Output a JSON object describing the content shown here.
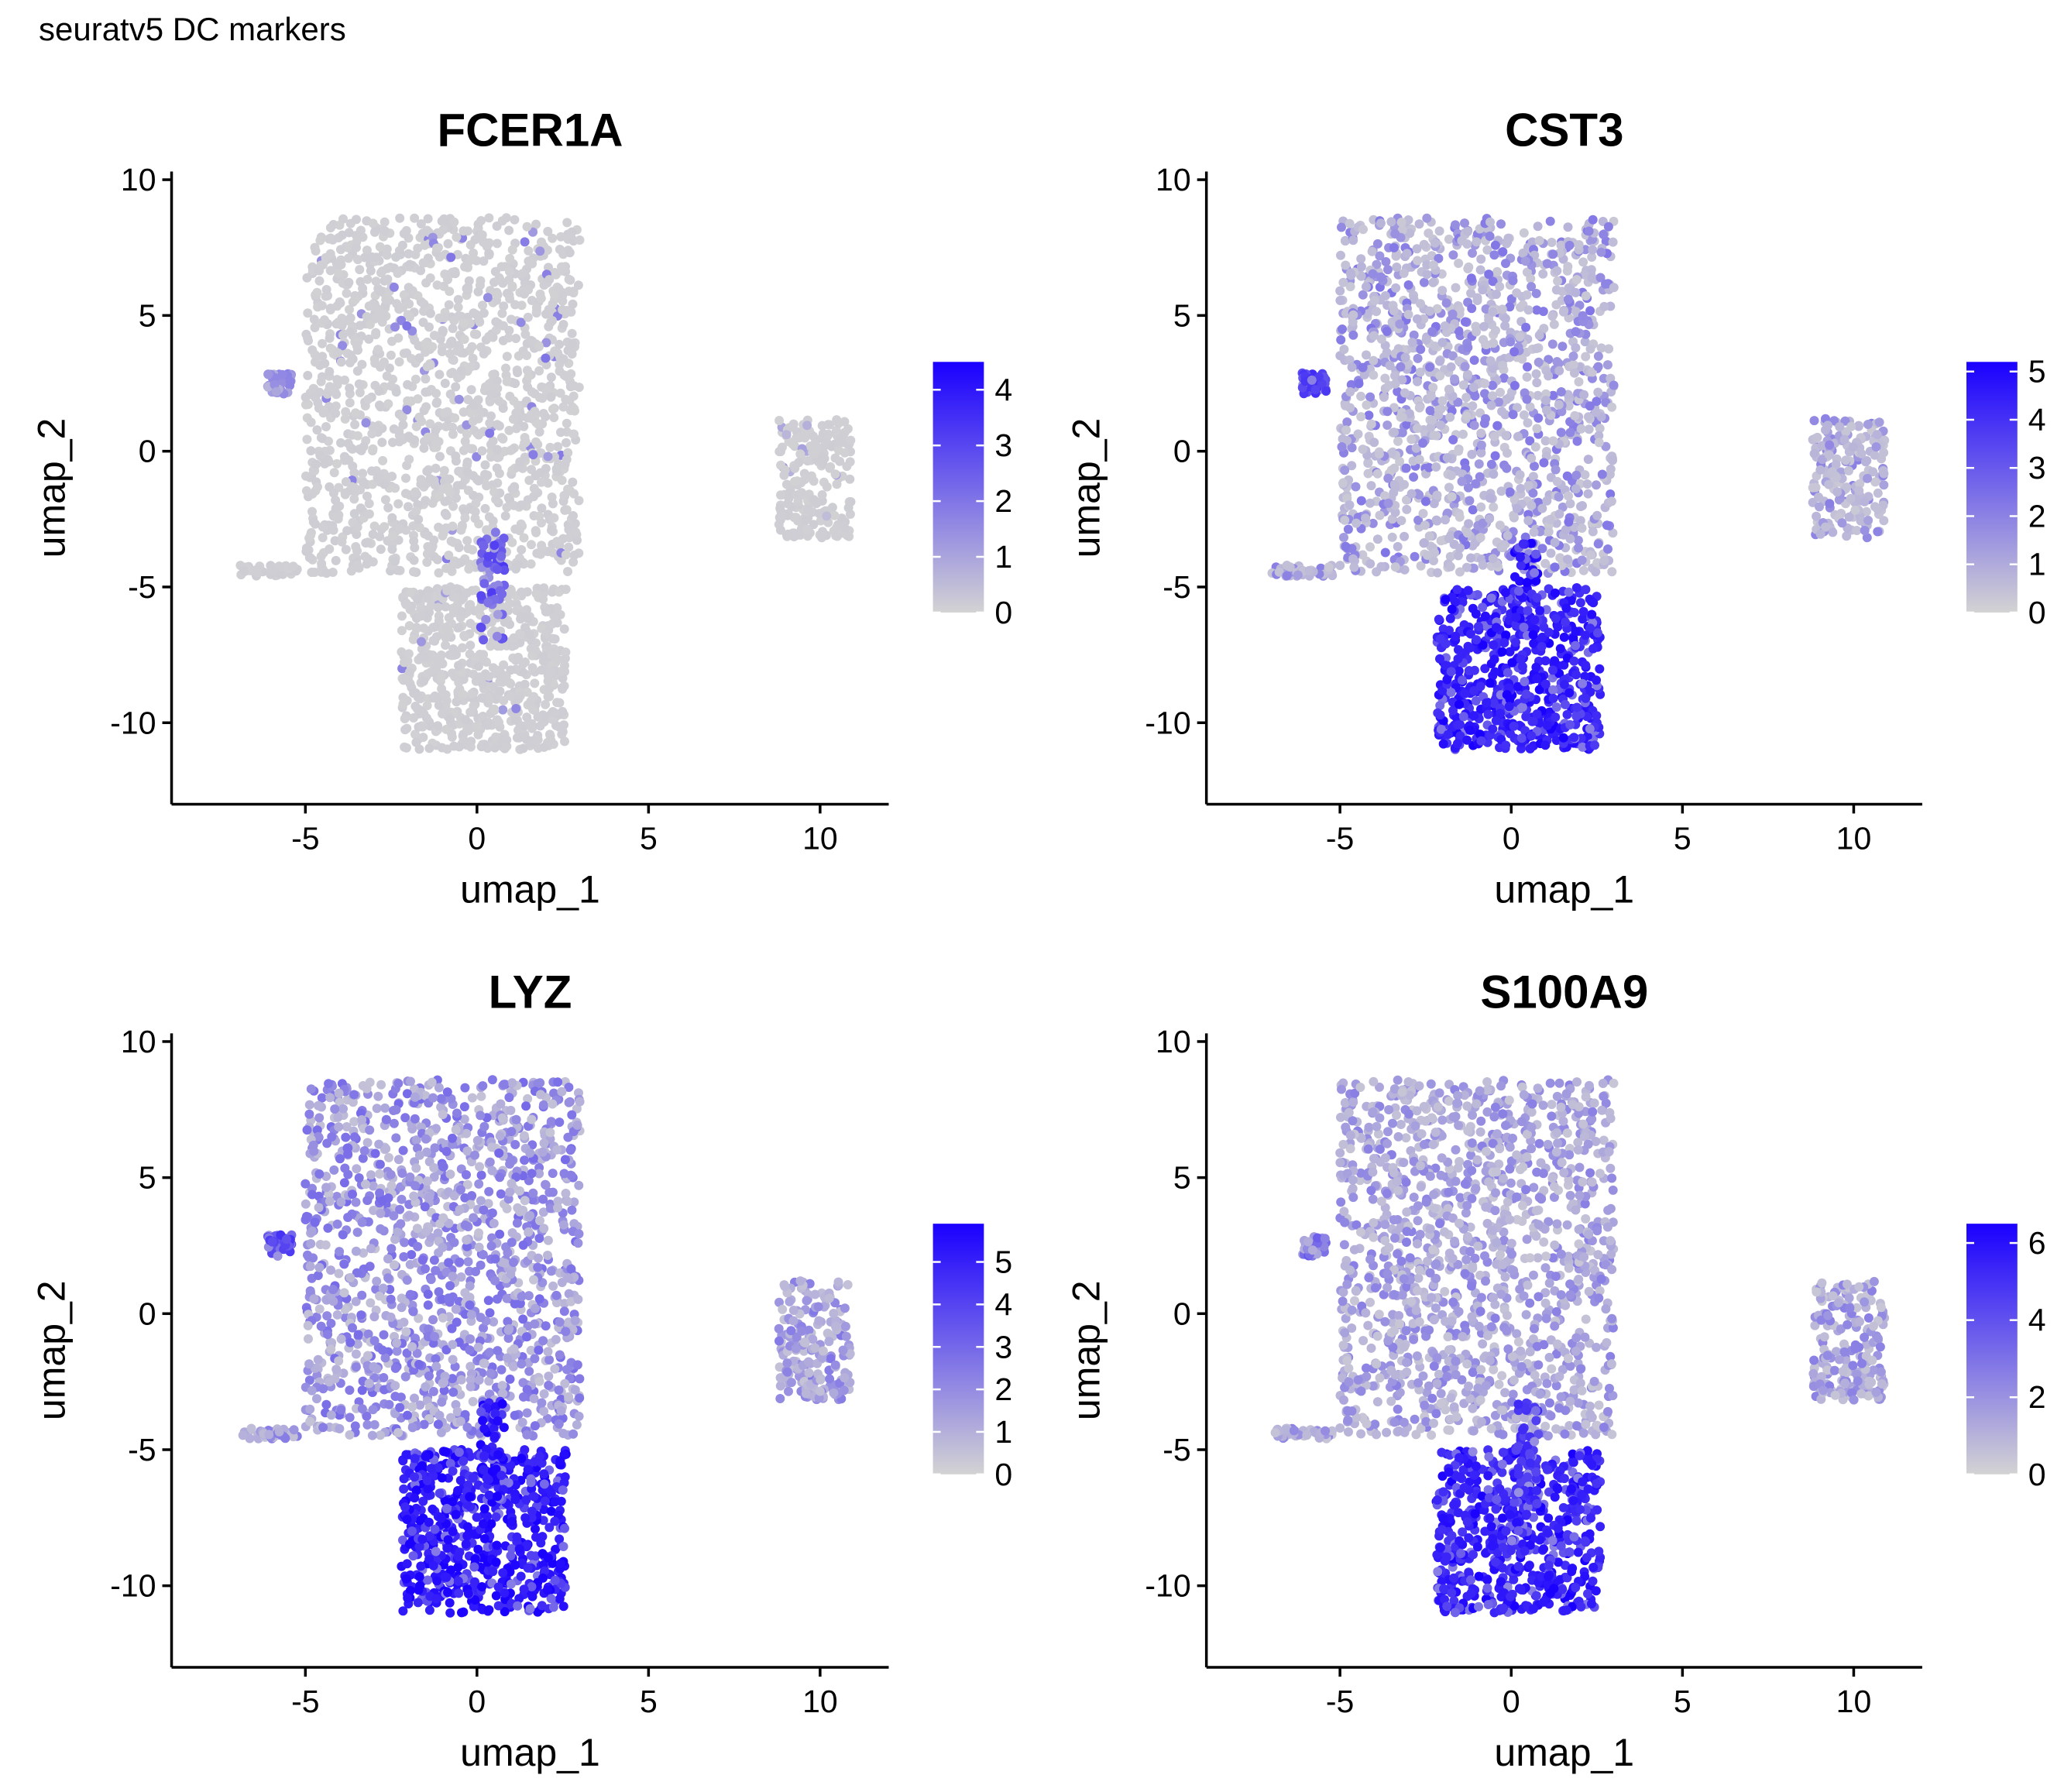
{
  "page": {
    "title": "seuratv5 DC markers"
  },
  "colors": {
    "low": "#d3d3d3",
    "high": "#1a00ff",
    "axis": "#000000",
    "background": "#ffffff"
  },
  "chart_data": [
    {
      "type": "scatter",
      "title": "FCER1A",
      "xlabel": "umap_1",
      "ylabel": "umap_2",
      "xlim": [
        -8.9,
        12.0
      ],
      "ylim": [
        -13.0,
        10.3
      ],
      "xticks": [
        -5,
        0,
        5,
        10
      ],
      "yticks": [
        -10,
        -5,
        0,
        5,
        10
      ],
      "grid": false,
      "legend": {
        "position": "right",
        "type": "colorbar",
        "min": 0,
        "max": 4.5,
        "ticks": [
          0,
          1,
          2,
          3,
          4
        ],
        "low_color": "#d3d3d3",
        "high_color": "#1a00ff"
      },
      "series": [
        {
          "regions": [
            {
              "x": [
                -5.0,
                3.0
              ],
              "y": [
                -4.5,
                8.6
              ],
              "level": 0.02,
              "hot_level": 0.35,
              "hot_frac": 0.03
            },
            {
              "x": [
                -2.2,
                2.6
              ],
              "y": [
                -11.0,
                -5.0
              ],
              "level": 0.02,
              "hot_level": 0.3,
              "hot_frac": 0.02
            },
            {
              "x": [
                0.1,
                0.8
              ],
              "y": [
                -7.0,
                -3.2
              ],
              "level": 0.5,
              "hot_level": 0.6,
              "hot_frac": 0.4
            },
            {
              "x": [
                8.8,
                10.9
              ],
              "y": [
                -3.2,
                1.2
              ],
              "level": 0.02,
              "hot_level": 0.2,
              "hot_frac": 0.02
            },
            {
              "x": [
                -7.0,
                -5.2
              ],
              "y": [
                -4.6,
                -4.2
              ],
              "level": 0.02,
              "hot_level": 0.2,
              "hot_frac": 0.0
            },
            {
              "x": [
                -6.1,
                -5.4
              ],
              "y": [
                2.1,
                2.9
              ],
              "level": 0.3,
              "hot_level": 0.4,
              "hot_frac": 0.3
            }
          ]
        }
      ]
    },
    {
      "type": "scatter",
      "title": "CST3",
      "xlabel": "umap_1",
      "ylabel": "umap_2",
      "xlim": [
        -8.9,
        12.0
      ],
      "ylim": [
        -13.0,
        10.3
      ],
      "xticks": [
        -5,
        0,
        5,
        10
      ],
      "yticks": [
        -10,
        -5,
        0,
        5,
        10
      ],
      "grid": false,
      "legend": {
        "position": "right",
        "type": "colorbar",
        "min": 0,
        "max": 5.2,
        "ticks": [
          0,
          1,
          2,
          3,
          4,
          5
        ],
        "low_color": "#d3d3d3",
        "high_color": "#1a00ff"
      },
      "series": [
        {
          "regions": [
            {
              "x": [
                -5.0,
                3.0
              ],
              "y": [
                -4.5,
                8.6
              ],
              "level": 0.1,
              "hot_level": 0.35,
              "hot_frac": 0.35
            },
            {
              "x": [
                -2.2,
                2.6
              ],
              "y": [
                -11.0,
                -5.0
              ],
              "level": 0.75,
              "hot_level": 0.85,
              "hot_frac": 0.6
            },
            {
              "x": [
                0.1,
                0.8
              ],
              "y": [
                -7.0,
                -3.2
              ],
              "level": 0.8,
              "hot_level": 0.9,
              "hot_frac": 0.5
            },
            {
              "x": [
                8.8,
                10.9
              ],
              "y": [
                -3.2,
                1.2
              ],
              "level": 0.1,
              "hot_level": 0.3,
              "hot_frac": 0.3
            },
            {
              "x": [
                -7.0,
                -5.2
              ],
              "y": [
                -4.6,
                -4.2
              ],
              "level": 0.1,
              "hot_level": 0.3,
              "hot_frac": 0.3
            },
            {
              "x": [
                -6.1,
                -5.4
              ],
              "y": [
                2.1,
                2.9
              ],
              "level": 0.6,
              "hot_level": 0.7,
              "hot_frac": 0.5
            }
          ]
        }
      ]
    },
    {
      "type": "scatter",
      "title": "LYZ",
      "xlabel": "umap_1",
      "ylabel": "umap_2",
      "xlim": [
        -8.9,
        12.0
      ],
      "ylim": [
        -13.0,
        10.3
      ],
      "xticks": [
        -5,
        0,
        5,
        10
      ],
      "yticks": [
        -10,
        -5,
        0,
        5,
        10
      ],
      "grid": false,
      "legend": {
        "position": "right",
        "type": "colorbar",
        "min": 0,
        "max": 5.9,
        "ticks": [
          0,
          1,
          2,
          3,
          4,
          5
        ],
        "low_color": "#d3d3d3",
        "high_color": "#1a00ff"
      },
      "series": [
        {
          "regions": [
            {
              "x": [
                -5.0,
                3.0
              ],
              "y": [
                -4.5,
                8.6
              ],
              "level": 0.15,
              "hot_level": 0.4,
              "hot_frac": 0.5
            },
            {
              "x": [
                -2.2,
                2.6
              ],
              "y": [
                -11.0,
                -5.0
              ],
              "level": 0.8,
              "hot_level": 0.9,
              "hot_frac": 0.6
            },
            {
              "x": [
                0.1,
                0.8
              ],
              "y": [
                -7.0,
                -3.2
              ],
              "level": 0.8,
              "hot_level": 0.9,
              "hot_frac": 0.5
            },
            {
              "x": [
                8.8,
                10.9
              ],
              "y": [
                -3.2,
                1.2
              ],
              "level": 0.15,
              "hot_level": 0.35,
              "hot_frac": 0.4
            },
            {
              "x": [
                -7.0,
                -5.2
              ],
              "y": [
                -4.6,
                -4.2
              ],
              "level": 0.15,
              "hot_level": 0.35,
              "hot_frac": 0.4
            },
            {
              "x": [
                -6.1,
                -5.4
              ],
              "y": [
                2.1,
                2.9
              ],
              "level": 0.5,
              "hot_level": 0.7,
              "hot_frac": 0.4
            }
          ]
        }
      ]
    },
    {
      "type": "scatter",
      "title": "S100A9",
      "xlabel": "umap_1",
      "ylabel": "umap_2",
      "xlim": [
        -8.9,
        12.0
      ],
      "ylim": [
        -13.0,
        10.3
      ],
      "xticks": [
        -5,
        0,
        5,
        10
      ],
      "yticks": [
        -10,
        -5,
        0,
        5,
        10
      ],
      "grid": false,
      "legend": {
        "position": "right",
        "type": "colorbar",
        "min": 0,
        "max": 6.5,
        "ticks": [
          0,
          2,
          4,
          6
        ],
        "low_color": "#d3d3d3",
        "high_color": "#1a00ff"
      },
      "series": [
        {
          "regions": [
            {
              "x": [
                -5.0,
                3.0
              ],
              "y": [
                -4.5,
                8.6
              ],
              "level": 0.12,
              "hot_level": 0.3,
              "hot_frac": 0.5
            },
            {
              "x": [
                -2.2,
                2.6
              ],
              "y": [
                -11.0,
                -5.0
              ],
              "level": 0.7,
              "hot_level": 0.85,
              "hot_frac": 0.6
            },
            {
              "x": [
                0.1,
                0.8
              ],
              "y": [
                -7.0,
                -3.2
              ],
              "level": 0.6,
              "hot_level": 0.75,
              "hot_frac": 0.4
            },
            {
              "x": [
                8.8,
                10.9
              ],
              "y": [
                -3.2,
                1.2
              ],
              "level": 0.12,
              "hot_level": 0.3,
              "hot_frac": 0.4
            },
            {
              "x": [
                -7.0,
                -5.2
              ],
              "y": [
                -4.6,
                -4.2
              ],
              "level": 0.12,
              "hot_level": 0.3,
              "hot_frac": 0.4
            },
            {
              "x": [
                -6.1,
                -5.4
              ],
              "y": [
                2.1,
                2.9
              ],
              "level": 0.3,
              "hot_level": 0.5,
              "hot_frac": 0.3
            }
          ]
        }
      ]
    }
  ]
}
